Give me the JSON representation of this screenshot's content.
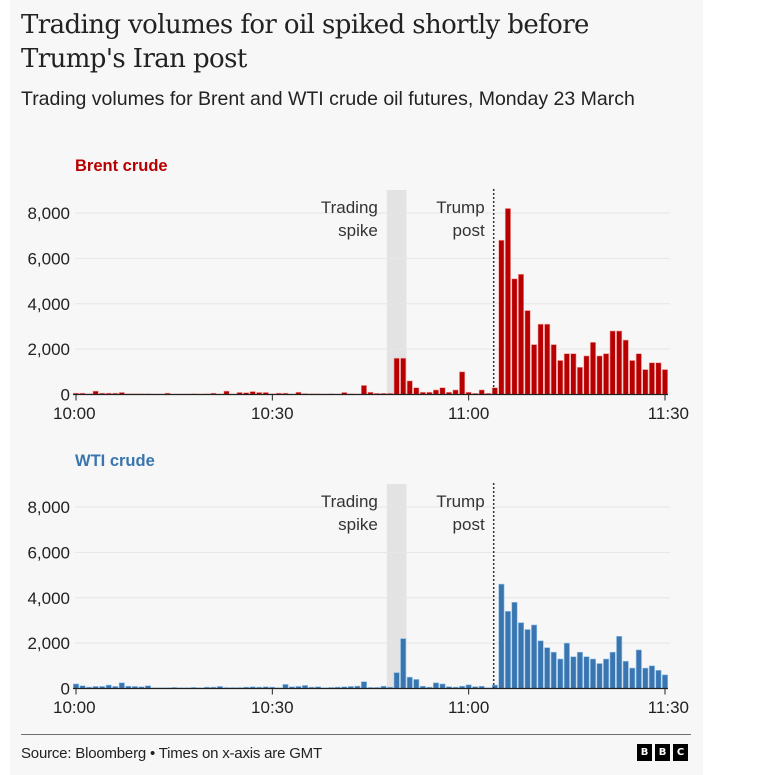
{
  "header": {
    "title": "Trading volumes for oil spiked shortly before Trump's Iran post",
    "subtitle": "Trading volumes for Brent and WTI crude oil futures, Monday 23 March"
  },
  "footer": {
    "source": "Source: Bloomberg • Times on x-axis are GMT",
    "logo_letters": [
      "B",
      "B",
      "C"
    ]
  },
  "chart_data": [
    {
      "type": "bar",
      "title": "Brent crude",
      "color": "#b80000",
      "xlabel": "",
      "ylabel": "",
      "x_start": "10:00",
      "x_end": "11:30",
      "x_interval_minutes": 1,
      "x_ticks": [
        "10:00",
        "10:30",
        "11:00",
        "11:30"
      ],
      "y_ticks": [
        "0",
        "2,000",
        "4,000",
        "6,000",
        "8,000"
      ],
      "y_tick_values": [
        0,
        2000,
        4000,
        6000,
        8000
      ],
      "ylim": [
        0,
        8000
      ],
      "grid": true,
      "annotations": [
        {
          "label_lines": [
            "Trading",
            "spike"
          ],
          "type": "shaded-band",
          "from_minute": 47.5,
          "to_minute": 50.5,
          "color": "#e3e3e3"
        },
        {
          "label_lines": [
            "Trump",
            "post"
          ],
          "type": "dotted-line",
          "at_minute": 63.9
        }
      ],
      "values": [
        60,
        60,
        30,
        150,
        60,
        60,
        60,
        90,
        30,
        30,
        30,
        30,
        20,
        20,
        60,
        20,
        20,
        20,
        30,
        20,
        30,
        60,
        20,
        150,
        20,
        90,
        80,
        130,
        90,
        90,
        30,
        60,
        60,
        20,
        100,
        40,
        30,
        30,
        20,
        30,
        20,
        90,
        30,
        20,
        400,
        100,
        50,
        50,
        50,
        1600,
        1600,
        600,
        300,
        100,
        100,
        200,
        300,
        100,
        200,
        1000,
        100,
        50,
        200,
        50,
        300,
        6800,
        8200,
        5100,
        5300,
        3700,
        2200,
        3100,
        3100,
        2200,
        1500,
        1800,
        1800,
        1200,
        1700,
        2300,
        1700,
        1800,
        2800,
        2800,
        2400,
        1500,
        1800,
        1100,
        1400,
        1400,
        1100
      ]
    },
    {
      "type": "bar",
      "title": "WTI crude",
      "color": "#3a75b0",
      "xlabel": "",
      "ylabel": "",
      "x_start": "10:00",
      "x_end": "11:30",
      "x_interval_minutes": 1,
      "x_ticks": [
        "10:00",
        "10:30",
        "11:00",
        "11:30"
      ],
      "y_ticks": [
        "0",
        "2,000",
        "4,000",
        "6,000",
        "8,000"
      ],
      "y_tick_values": [
        0,
        2000,
        4000,
        6000,
        8000
      ],
      "ylim": [
        0,
        8000
      ],
      "grid": true,
      "annotations": [
        {
          "label_lines": [
            "Trading",
            "spike"
          ],
          "type": "shaded-band",
          "from_minute": 47.5,
          "to_minute": 50.5,
          "color": "#e3e3e3"
        },
        {
          "label_lines": [
            "Trump",
            "post"
          ],
          "type": "dotted-line",
          "at_minute": 63.9
        }
      ],
      "values": [
        200,
        120,
        60,
        90,
        90,
        150,
        90,
        250,
        100,
        90,
        75,
        120,
        30,
        30,
        30,
        45,
        30,
        30,
        45,
        30,
        60,
        60,
        90,
        40,
        40,
        40,
        60,
        75,
        60,
        75,
        60,
        30,
        180,
        75,
        90,
        135,
        60,
        75,
        30,
        45,
        60,
        75,
        90,
        105,
        300,
        45,
        45,
        100,
        60,
        700,
        2200,
        500,
        400,
        100,
        60,
        250,
        200,
        80,
        60,
        100,
        160,
        80,
        100,
        30,
        150,
        4600,
        3400,
        3800,
        2900,
        2600,
        2800,
        2100,
        1800,
        1600,
        1300,
        2000,
        1400,
        1600,
        1400,
        1300,
        1100,
        1300,
        1600,
        2300,
        1200,
        900,
        1700,
        900,
        1000,
        800,
        600
      ]
    }
  ]
}
